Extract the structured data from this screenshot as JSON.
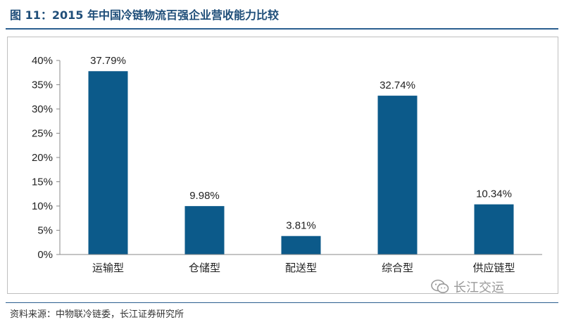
{
  "header": {
    "title": "图 11：2015 年中国冷链物流百强企业营收能力比较"
  },
  "chart_data": {
    "type": "bar",
    "title": "",
    "categories": [
      "运输型",
      "仓储型",
      "配送型",
      "综合型",
      "供应链型"
    ],
    "values": [
      37.79,
      9.98,
      3.81,
      32.74,
      10.34
    ],
    "value_labels": [
      "37.79%",
      "9.98%",
      "3.81%",
      "32.74%",
      "10.34%"
    ],
    "y_ticks": [
      "0%",
      "5%",
      "10%",
      "15%",
      "20%",
      "25%",
      "30%",
      "35%",
      "40%"
    ],
    "ylim": [
      0,
      40
    ],
    "y_step": 5,
    "grid": false,
    "bar_color": "#0c5a8a",
    "xlabel": "",
    "ylabel": ""
  },
  "footer": {
    "source": "资料来源：中物联冷链委，长江证券研究所"
  },
  "watermark": {
    "text": "长江交运",
    "icon": "wechat-icon"
  }
}
